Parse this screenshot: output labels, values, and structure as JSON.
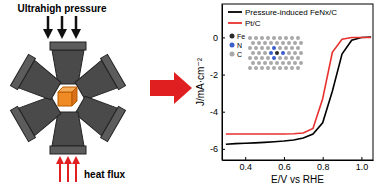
{
  "chart_data": {
    "type": "line",
    "x_label": "E/V vs RHE",
    "y_label": "J/mA·cm⁻²",
    "x": [
      0.3,
      0.35,
      0.4,
      0.45,
      0.5,
      0.55,
      0.6,
      0.65,
      0.7,
      0.75,
      0.8,
      0.85,
      0.9,
      0.95,
      1.0,
      1.05
    ],
    "series": [
      {
        "name": "Pressure-induced FeNx/C",
        "color": "#000000",
        "values": [
          -5.75,
          -5.72,
          -5.7,
          -5.68,
          -5.65,
          -5.62,
          -5.58,
          -5.52,
          -5.42,
          -5.2,
          -4.6,
          -2.9,
          -0.9,
          -0.15,
          0,
          0.02
        ]
      },
      {
        "name": "Pt/C",
        "color": "#e8312f",
        "values": [
          -5.2,
          -5.2,
          -5.2,
          -5.2,
          -5.2,
          -5.2,
          -5.2,
          -5.19,
          -5.15,
          -4.9,
          -3.3,
          -0.8,
          -0.1,
          0,
          0,
          0
        ]
      }
    ],
    "xlim": [
      0.28,
      1.06
    ],
    "xticks": [
      0.4,
      0.6,
      0.8,
      {
        "value": 1.0,
        "label": "1.0"
      }
    ],
    "ylim": [
      -6.6,
      1.8
    ],
    "yticks": [
      -6,
      -4,
      -2,
      0
    ],
    "legend": "upper left",
    "grid": false
  },
  "diagram": {
    "title": "Ultrahigh pressure",
    "label": "heat flux",
    "inset_labels": [
      {
        "text": "Fe",
        "color": "#2b2b2b"
      },
      {
        "text": "N",
        "color": "#3a5fcd"
      },
      {
        "text": "C",
        "color": "#a8a8a8"
      }
    ]
  }
}
